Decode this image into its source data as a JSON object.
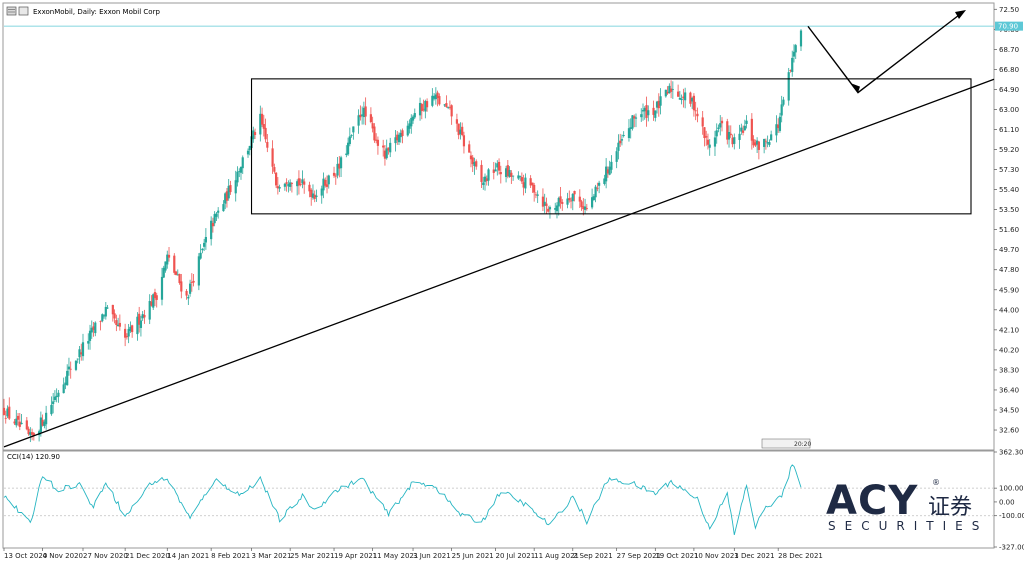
{
  "window": {
    "symbol_title": "ExxonMobil, Daily:  Exxon Mobil Corp"
  },
  "price_panel": {
    "y_ticks": [
      "72.50",
      "70.60",
      "68.70",
      "66.80",
      "64.90",
      "63.00",
      "61.10",
      "59.20",
      "57.30",
      "55.40",
      "53.50",
      "51.60",
      "49.70",
      "47.80",
      "45.90",
      "44.00",
      "42.10",
      "40.20",
      "38.30",
      "36.40",
      "34.50",
      "32.60"
    ],
    "y_range": [
      30.8,
      73.0
    ],
    "current_price_label": "70.90",
    "current_price": 70.9,
    "period_marker": "20:20"
  },
  "cci_panel": {
    "label": "CCI(14) 120.90",
    "y_ticks": [
      "362.30",
      "100.00",
      "0.00",
      "-100.00",
      "-327.00"
    ],
    "y_range": [
      -327,
      362.3
    ],
    "levels": [
      100,
      -100
    ]
  },
  "x_axis": {
    "date_labels": [
      "13 Oct 2020",
      "4 Nov 2020",
      "27 Nov 2020",
      "21 Dec 2020",
      "14 Jan 2021",
      "8 Feb 2021",
      "3 Mar 2021",
      "25 Mar 2021",
      "19 Apr 2021",
      "11 May 2021",
      "3 Jun 2021",
      "25 Jun 2021",
      "20 Jul 2021",
      "11 Aug 2021",
      "2 Sep 2021",
      "27 Sep 2021",
      "19 Oct 2021",
      "10 Nov 2021",
      "3 Dec 2021",
      "28 Dec 2021"
    ]
  },
  "logo": {
    "brand": "ACY",
    "cn": "证券",
    "sub": "SECURITIES",
    "reg": "®"
  },
  "colors": {
    "bull": "#26a69a",
    "bear": "#ef5350",
    "cci_line": "#26b5c2",
    "price_line": "#5ec8d6",
    "annotation": "#000000",
    "logo": "#1f2a44"
  },
  "chart_data": {
    "type": "candlestick",
    "timeframe": "Daily",
    "x_start": "13 Oct 2020",
    "x_end": "31 Dec 2021",
    "anchors": [
      {
        "date": "13 Oct 2020",
        "close": 34.5
      },
      {
        "date": "28 Oct 2020",
        "close": 31.8
      },
      {
        "date": "4 Nov 2020",
        "close": 33.5
      },
      {
        "date": "18 Nov 2020",
        "close": 38.0
      },
      {
        "date": "10 Dec 2020",
        "close": 44.0
      },
      {
        "date": "21 Dec 2020",
        "close": 41.2
      },
      {
        "date": "8 Jan 2021",
        "close": 45.5
      },
      {
        "date": "14 Jan 2021",
        "close": 49.0
      },
      {
        "date": "25 Jan 2021",
        "close": 45.2
      },
      {
        "date": "8 Feb 2021",
        "close": 52.0
      },
      {
        "date": "16 Feb 2021",
        "close": 54.5
      },
      {
        "date": "8 Mar 2021",
        "close": 62.0
      },
      {
        "date": "17 Mar 2021",
        "close": 56.0
      },
      {
        "date": "25 Mar 2021",
        "close": 56.6
      },
      {
        "date": "8 Apr 2021",
        "close": 55.0
      },
      {
        "date": "22 Apr 2021",
        "close": 57.5
      },
      {
        "date": "5 May 2021",
        "close": 63.0
      },
      {
        "date": "18 May 2021",
        "close": 58.5
      },
      {
        "date": "3 Jun 2021",
        "close": 62.5
      },
      {
        "date": "15 Jun 2021",
        "close": 64.2
      },
      {
        "date": "25 Jun 2021",
        "close": 62.5
      },
      {
        "date": "12 Jul 2021",
        "close": 56.0
      },
      {
        "date": "20 Jul 2021",
        "close": 57.5
      },
      {
        "date": "11 Aug 2021",
        "close": 55.5
      },
      {
        "date": "19 Aug 2021",
        "close": 53.5
      },
      {
        "date": "2 Sep 2021",
        "close": 55.0
      },
      {
        "date": "10 Sep 2021",
        "close": 53.5
      },
      {
        "date": "27 Sep 2021",
        "close": 59.0
      },
      {
        "date": "8 Oct 2021",
        "close": 62.5
      },
      {
        "date": "19 Oct 2021",
        "close": 63.0
      },
      {
        "date": "28 Oct 2021",
        "close": 65.0
      },
      {
        "date": "10 Nov 2021",
        "close": 63.5
      },
      {
        "date": "18 Nov 2021",
        "close": 59.5
      },
      {
        "date": "25 Nov 2021",
        "close": 61.5
      },
      {
        "date": "3 Dec 2021",
        "close": 59.8
      },
      {
        "date": "10 Dec 2021",
        "close": 61.5
      },
      {
        "date": "15 Dec 2021",
        "close": 59.5
      },
      {
        "date": "20 Dec 2021",
        "close": 59.8
      },
      {
        "date": "28 Dec 2021",
        "close": 61.5
      },
      {
        "date": "5 Jan 2022",
        "close": 67.5
      },
      {
        "date": "10 Jan 2022",
        "close": 71.0
      }
    ],
    "cci_anchors": [
      {
        "date": "13 Oct 2020",
        "value": 50
      },
      {
        "date": "28 Oct 2020",
        "value": -160
      },
      {
        "date": "4 Nov 2020",
        "value": 200
      },
      {
        "date": "12 Nov 2020",
        "value": 90
      },
      {
        "date": "25 Nov 2020",
        "value": 130
      },
      {
        "date": "3 Dec 2020",
        "value": -40
      },
      {
        "date": "10 Dec 2020",
        "value": 150
      },
      {
        "date": "21 Dec 2020",
        "value": -110
      },
      {
        "date": "5 Jan 2021",
        "value": 140
      },
      {
        "date": "14 Jan 2021",
        "value": 170
      },
      {
        "date": "27 Jan 2021",
        "value": -120
      },
      {
        "date": "10 Feb 2021",
        "value": 160
      },
      {
        "date": "25 Feb 2021",
        "value": 50
      },
      {
        "date": "8 Mar 2021",
        "value": 170
      },
      {
        "date": "19 Mar 2021",
        "value": -130
      },
      {
        "date": "1 Apr 2021",
        "value": 40
      },
      {
        "date": "8 Apr 2021",
        "value": -60
      },
      {
        "date": "20 Apr 2021",
        "value": 80
      },
      {
        "date": "5 May 2021",
        "value": 170
      },
      {
        "date": "20 May 2021",
        "value": -90
      },
      {
        "date": "3 Jun 2021",
        "value": 140
      },
      {
        "date": "15 Jun 2021",
        "value": 120
      },
      {
        "date": "30 Jun 2021",
        "value": -90
      },
      {
        "date": "12 Jul 2021",
        "value": -150
      },
      {
        "date": "23 Jul 2021",
        "value": 80
      },
      {
        "date": "5 Aug 2021",
        "value": -10
      },
      {
        "date": "20 Aug 2021",
        "value": -170
      },
      {
        "date": "2 Sep 2021",
        "value": 40
      },
      {
        "date": "10 Sep 2021",
        "value": -140
      },
      {
        "date": "22 Sep 2021",
        "value": 160
      },
      {
        "date": "5 Oct 2021",
        "value": 140
      },
      {
        "date": "19 Oct 2021",
        "value": 60
      },
      {
        "date": "28 Oct 2021",
        "value": 150
      },
      {
        "date": "12 Nov 2021",
        "value": 20
      },
      {
        "date": "19 Nov 2021",
        "value": -190
      },
      {
        "date": "29 Nov 2021",
        "value": 60
      },
      {
        "date": "3 Dec 2021",
        "value": -230
      },
      {
        "date": "10 Dec 2021",
        "value": 120
      },
      {
        "date": "15 Dec 2021",
        "value": -180
      },
      {
        "date": "21 Dec 2021",
        "value": -40
      },
      {
        "date": "30 Dec 2021",
        "value": 40
      },
      {
        "date": "5 Jan 2022",
        "value": 270
      },
      {
        "date": "10 Jan 2022",
        "value": 121
      }
    ],
    "trendline": {
      "start": {
        "date": "13 Oct 2020",
        "price": 31.0
      },
      "end": {
        "date": "31 Dec 2021",
        "price": 67.0
      }
    },
    "range_box": {
      "start": "3 Mar 2021",
      "end": "31 Dec 2021",
      "top": 65.9,
      "bottom": 53.1
    },
    "projection": [
      {
        "date": "10 Jan 2022",
        "price": 70.5
      },
      {
        "date": "15 Jan 2022",
        "price": 64.6
      },
      {
        "date": "29 Jan 2022",
        "price": 73.0
      }
    ]
  }
}
